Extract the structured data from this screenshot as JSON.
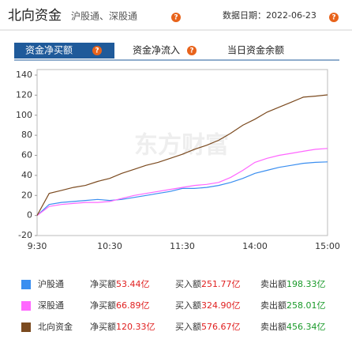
{
  "header": {
    "title": "北向资金",
    "subtitle": "沪股通、深股通",
    "help": "?",
    "date": "数据日期：2022-06-23",
    "date_help": "?"
  },
  "tabs": [
    {
      "label": "资金净买额",
      "help": "?"
    },
    {
      "label": "资金净流入",
      "help": "?"
    },
    {
      "label": "当日资金余额"
    }
  ],
  "watermark": "东方财富",
  "chart_data": {
    "type": "line",
    "categories": [
      "9:30",
      null,
      null,
      null,
      null,
      null,
      "10:30",
      null,
      null,
      null,
      null,
      null,
      "11:30",
      null,
      null,
      null,
      null,
      null,
      "14:00",
      null,
      null,
      null,
      null,
      null,
      "15:00"
    ],
    "ylim": [
      -20,
      140
    ],
    "yticks": [
      -20,
      0,
      20,
      40,
      60,
      80,
      100,
      120,
      140
    ],
    "grid": false,
    "series": [
      {
        "name": "沪股通",
        "color": "#3a8ef0",
        "values": [
          0,
          11,
          13,
          14,
          15,
          16,
          15,
          16,
          18,
          20,
          22,
          24,
          27,
          27,
          28,
          30,
          33,
          37,
          42,
          45,
          48,
          50,
          52,
          53,
          53.44
        ]
      },
      {
        "name": "深股通",
        "color": "#ff66ff",
        "values": [
          0,
          9,
          11,
          12,
          13,
          13,
          14,
          17,
          20,
          22,
          24,
          26,
          28,
          30,
          31,
          33,
          38,
          45,
          53,
          57,
          60,
          62,
          64,
          66,
          66.89
        ]
      },
      {
        "name": "北向资金",
        "color": "#7b4a1f",
        "values": [
          0,
          22,
          25,
          28,
          30,
          34,
          37,
          42,
          46,
          50,
          53,
          57,
          61,
          66,
          70,
          75,
          82,
          90,
          96,
          103,
          108,
          113,
          118,
          119,
          120.33
        ]
      }
    ],
    "legend_rows": [
      {
        "net_label": "净买额",
        "net": "53.44亿",
        "buy_label": "买入额",
        "buy": "251.77亿",
        "sell_label": "卖出额",
        "sell": "198.33亿"
      },
      {
        "net_label": "净买额",
        "net": "66.89亿",
        "buy_label": "买入额",
        "buy": "324.90亿",
        "sell_label": "卖出额",
        "sell": "258.01亿"
      },
      {
        "net_label": "净买额",
        "net": "120.33亿",
        "buy_label": "买入额",
        "buy": "576.67亿",
        "sell_label": "卖出额",
        "sell": "456.34亿"
      }
    ]
  }
}
